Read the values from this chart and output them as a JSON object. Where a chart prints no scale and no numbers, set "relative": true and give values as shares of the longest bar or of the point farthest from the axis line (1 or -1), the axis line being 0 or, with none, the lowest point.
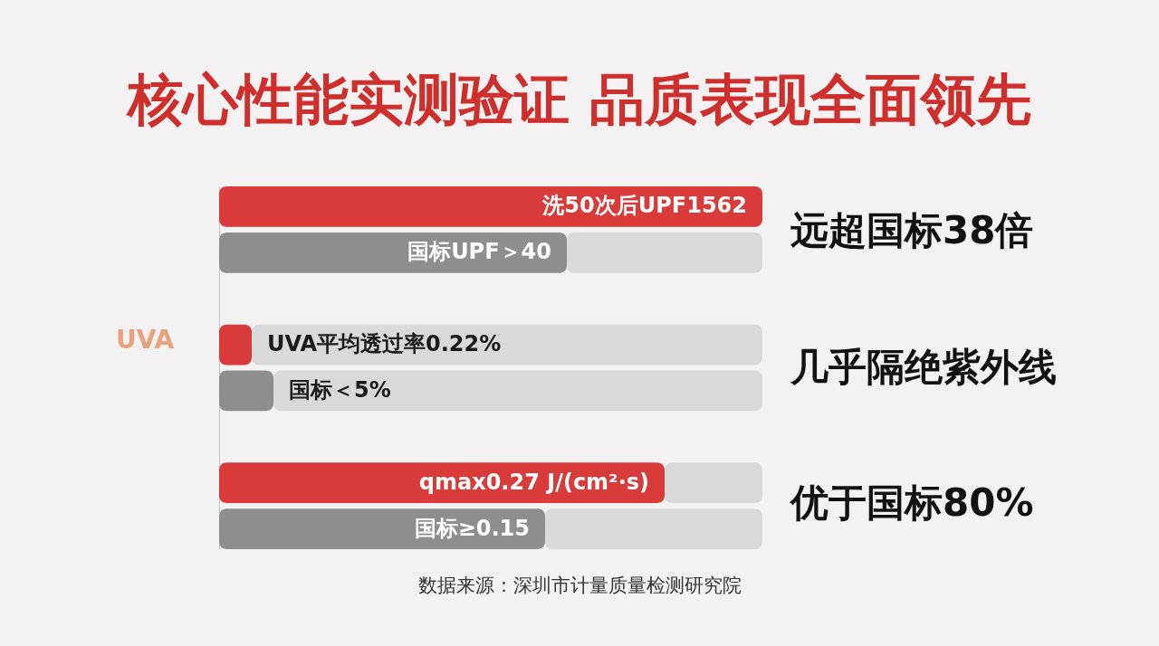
{
  "chart_data": {
    "type": "bar",
    "orientation": "horizontal",
    "stacked": true,
    "relative": true,
    "title": "核心性能实测验证 品质表现全面领先",
    "categories": [
      "洗50次后UPF1562",
      "国标UPF＞40",
      null,
      "UVA平均透过率0.22%",
      "国标＜5%",
      null,
      "qmax0.27 J/(cm²·s)",
      "国标≥0.15"
    ],
    "series": [
      {
        "colors": [
          "#d93a3a",
          "#8e8e8e",
          null,
          "#d93a3a",
          "#8e8e8e",
          null,
          "#d93a3a",
          "#8e8e8e"
        ],
        "values": [
          1.0,
          0.64,
          null,
          0.06,
          0.1,
          null,
          0.82,
          0.6
        ]
      },
      {
        "color": "#d9d9d9",
        "values": [
          null,
          0.36,
          null,
          0.94,
          0.9,
          null,
          0.18,
          0.4
        ]
      }
    ],
    "annotations": [
      "远超国标38倍",
      "几乎隔绝紫外线",
      "优于国标80%",
      "UVA",
      "数据来源：深圳市计量质量检测研究院"
    ]
  }
}
